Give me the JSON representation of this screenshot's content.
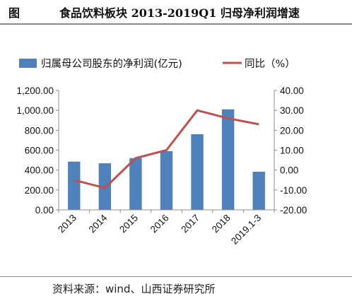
{
  "header": {
    "figure_label": "图",
    "title": "食品饮料板块 2013-2019Q1 归母净利润增速"
  },
  "source": "资料来源：wind、山西证券研究所",
  "colors": {
    "bar": "#4f81bd",
    "line": "#c0504d",
    "axis": "#8c8c8c"
  },
  "chart_data": {
    "type": "bar",
    "title": "食品饮料板块 2013-2019Q1 归母净利润增速",
    "categories": [
      "2013",
      "2014",
      "2015",
      "2016",
      "2017",
      "2018",
      "2019.1-3"
    ],
    "series": [
      {
        "name": "归属母公司股东的净利润(亿元)",
        "type": "bar",
        "axis": "left",
        "values": [
          485,
          468,
          520,
          590,
          760,
          1010,
          383
        ]
      },
      {
        "name": "同比（%）",
        "type": "line",
        "axis": "right",
        "values": [
          -5,
          -9,
          6,
          10,
          30,
          26,
          23
        ]
      }
    ],
    "left_axis": {
      "ylim": [
        0,
        1200
      ],
      "ticks": [
        "0.00",
        "200.00",
        "400.00",
        "600.00",
        "800.00",
        "1,000.00",
        "1,200.00"
      ]
    },
    "right_axis": {
      "ylim": [
        -20,
        40
      ],
      "ticks": [
        "-20.00",
        "-10.00",
        "0.00",
        "10.00",
        "20.00",
        "30.00",
        "40.00"
      ]
    },
    "legend_position": "top",
    "grid": false
  }
}
